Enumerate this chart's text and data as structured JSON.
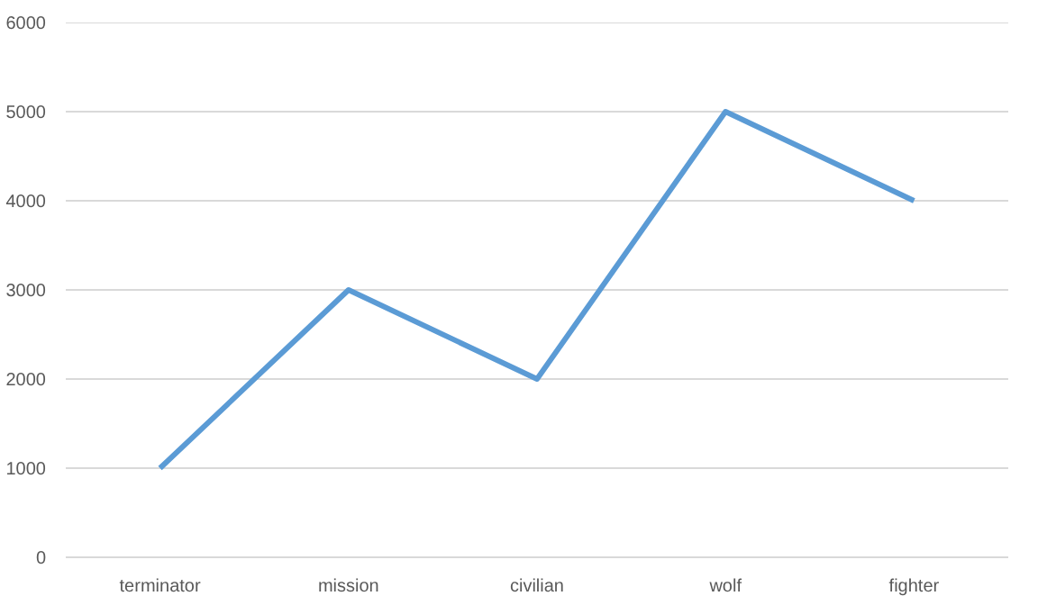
{
  "chart_data": {
    "type": "line",
    "categories": [
      "terminator",
      "mission",
      "civilian",
      "wolf",
      "fighter"
    ],
    "series": [
      {
        "color": "#5b9bd5",
        "values": [
          1000,
          3000,
          2000,
          5000,
          4000
        ]
      }
    ],
    "ylim": [
      0,
      6000
    ],
    "yticks": [
      0,
      1000,
      2000,
      3000,
      4000,
      5000,
      6000
    ],
    "grid": "y",
    "marker": "none",
    "line_style": "solid"
  }
}
